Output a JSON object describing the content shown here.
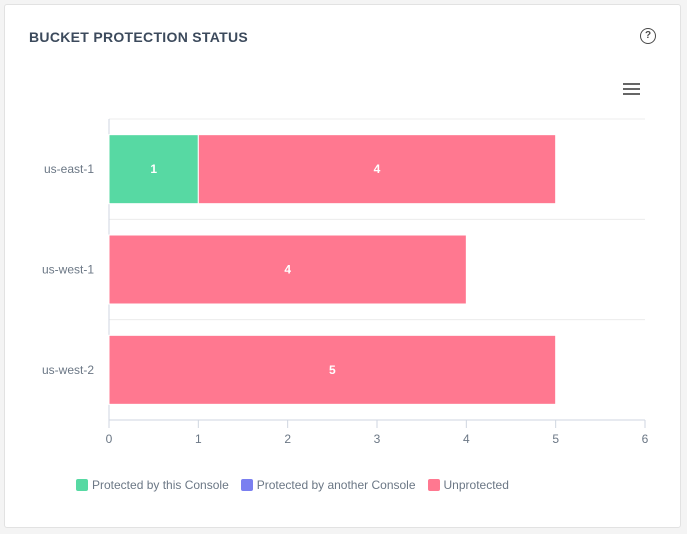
{
  "card": {
    "title": "BUCKET PROTECTION STATUS",
    "help_icon": "help-circle-icon",
    "menu_icon": "hamburger-menu-icon"
  },
  "chart_data": {
    "type": "bar",
    "orientation": "horizontal",
    "stacked": true,
    "categories": [
      "us-east-1",
      "us-west-1",
      "us-west-2"
    ],
    "series": [
      {
        "name": "Protected by this Console",
        "color": "#57d9a3",
        "values": [
          1,
          0,
          0
        ]
      },
      {
        "name": "Protected by another Console",
        "color": "#7a7ff0",
        "values": [
          0,
          0,
          0
        ]
      },
      {
        "name": "Unprotected",
        "color": "#ff7890",
        "values": [
          4,
          4,
          5
        ]
      }
    ],
    "xlim": [
      0,
      6
    ],
    "xticks": [
      "0",
      "1",
      "2",
      "3",
      "4",
      "5",
      "6"
    ],
    "grid": true,
    "legend": "bottom-left"
  }
}
